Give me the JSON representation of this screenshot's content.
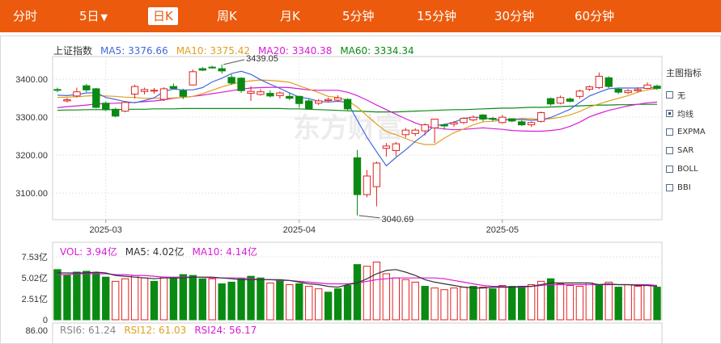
{
  "tabs": [
    {
      "label": "分时"
    },
    {
      "label": "5日"
    },
    {
      "label": "日K",
      "active": true
    },
    {
      "label": "周K"
    },
    {
      "label": "月K"
    },
    {
      "label": "5分钟"
    },
    {
      "label": "15分钟"
    },
    {
      "label": "30分钟"
    },
    {
      "label": "60分钟"
    }
  ],
  "five_day_caret": "▼",
  "legends": {
    "main": {
      "index": "上证指数",
      "ma5": "MA5: 3376.66",
      "ma10": "MA10: 3375.42",
      "ma20": "MA20: 3340.38",
      "ma60": "MA60: 3334.34"
    },
    "vol": {
      "vol": "VOL: 3.94亿",
      "ma5": "MA5: 4.02亿",
      "ma10": "MA10: 4.14亿"
    },
    "rsi": {
      "rsi6": "RSI6: 61.24",
      "rsi12": "RSI12: 61.03",
      "rsi24": "RSI24: 56.17"
    }
  },
  "side_panel": {
    "title": "主图指标",
    "items": [
      {
        "label": "无",
        "checked": false
      },
      {
        "label": "均线",
        "checked": true
      },
      {
        "label": "EXPMA",
        "checked": false
      },
      {
        "label": "SAR",
        "checked": false
      },
      {
        "label": "BOLL",
        "checked": false
      },
      {
        "label": "BBI",
        "checked": false
      }
    ]
  },
  "colors": {
    "brand": "#ec5a0d",
    "up": "#e02222",
    "down": "#0a8a12",
    "ma5": "#4169e1",
    "ma10": "#e0a020",
    "ma20": "#d81bd8",
    "ma60": "#0a8a12",
    "rsi6": "#888888",
    "rsi12": "#e0a020",
    "rsi24": "#d81bd8",
    "vol": "#d81bd8"
  },
  "chart_data": [
    {
      "type": "candlestick",
      "title": "",
      "x_ticks": [
        "2025-03",
        "2025-04",
        "2025-05"
      ],
      "y_ticks": [
        "3400.00",
        "3300.00",
        "3200.00",
        "3100.00"
      ],
      "ylim": [
        3030,
        3460
      ],
      "high_label": "3439.05",
      "low_label": "3040.69",
      "candles": [
        [
          3373,
          3371,
          3378,
          3366
        ],
        [
          3343,
          3346,
          3351,
          3339
        ],
        [
          3356,
          3367,
          3378,
          3352
        ],
        [
          3383,
          3372,
          3388,
          3366
        ],
        [
          3375,
          3326,
          3377,
          3323
        ],
        [
          3337,
          3320,
          3342,
          3316
        ],
        [
          3321,
          3303,
          3325,
          3300
        ],
        [
          3316,
          3339,
          3342,
          3313
        ],
        [
          3361,
          3381,
          3386,
          3349
        ],
        [
          3368,
          3373,
          3378,
          3360
        ],
        [
          3370,
          3371,
          3377,
          3362
        ],
        [
          3347,
          3375,
          3379,
          3343
        ],
        [
          3381,
          3376,
          3389,
          3374
        ],
        [
          3370,
          3355,
          3375,
          3348
        ],
        [
          3385,
          3420,
          3426,
          3384
        ],
        [
          3428,
          3424,
          3432,
          3422
        ],
        [
          3432,
          3430,
          3436,
          3428
        ],
        [
          3428,
          3422,
          3439,
          3415
        ],
        [
          3405,
          3390,
          3413,
          3385
        ],
        [
          3403,
          3370,
          3405,
          3364
        ],
        [
          3363,
          3368,
          3382,
          3343
        ],
        [
          3360,
          3367,
          3374,
          3357
        ],
        [
          3363,
          3356,
          3371,
          3352
        ],
        [
          3357,
          3364,
          3368,
          3349
        ],
        [
          3355,
          3350,
          3365,
          3345
        ],
        [
          3355,
          3336,
          3357,
          3325
        ],
        [
          3343,
          3322,
          3348,
          3320
        ],
        [
          3337,
          3343,
          3348,
          3332
        ],
        [
          3344,
          3347,
          3352,
          3340
        ],
        [
          3345,
          3351,
          3358,
          3340
        ],
        [
          3347,
          3322,
          3350,
          3318
        ],
        [
          3193,
          3096,
          3214,
          3041
        ],
        [
          3096,
          3145,
          3161,
          3089
        ],
        [
          3117,
          3179,
          3183,
          3065
        ],
        [
          3218,
          3224,
          3232,
          3196
        ],
        [
          3212,
          3230,
          3235,
          3197
        ],
        [
          3254,
          3266,
          3272,
          3246
        ],
        [
          3257,
          3266,
          3271,
          3250
        ],
        [
          3264,
          3280,
          3284,
          3252
        ],
        [
          3272,
          3295,
          3296,
          3232
        ],
        [
          3280,
          3277,
          3283,
          3268
        ],
        [
          3282,
          3286,
          3290,
          3275
        ],
        [
          3286,
          3297,
          3300,
          3282
        ],
        [
          3293,
          3300,
          3305,
          3289
        ],
        [
          3306,
          3295,
          3308,
          3289
        ],
        [
          3297,
          3295,
          3301,
          3290
        ],
        [
          3286,
          3300,
          3306,
          3283
        ],
        [
          3296,
          3290,
          3297,
          3287
        ],
        [
          3288,
          3280,
          3292,
          3277
        ],
        [
          3280,
          3286,
          3289,
          3274
        ],
        [
          3289,
          3312,
          3315,
          3286
        ],
        [
          3349,
          3335,
          3352,
          3330
        ],
        [
          3337,
          3352,
          3357,
          3334
        ],
        [
          3348,
          3342,
          3352,
          3339
        ],
        [
          3355,
          3369,
          3373,
          3349
        ],
        [
          3374,
          3380,
          3384,
          3369
        ],
        [
          3378,
          3408,
          3418,
          3374
        ],
        [
          3404,
          3381,
          3408,
          3377
        ],
        [
          3374,
          3366,
          3378,
          3361
        ],
        [
          3365,
          3370,
          3374,
          3361
        ],
        [
          3370,
          3373,
          3379,
          3365
        ],
        [
          3376,
          3385,
          3392,
          3374
        ],
        [
          3382,
          3376,
          3386,
          3372
        ]
      ],
      "ma5": [
        3358,
        3357,
        3360,
        3364,
        3365,
        3352,
        3347,
        3341,
        3338,
        3344,
        3351,
        3368,
        3374,
        3372,
        3372,
        3378,
        3393,
        3403,
        3415,
        3421,
        3413,
        3399,
        3387,
        3376,
        3364,
        3353,
        3349,
        3342,
        3340,
        3342,
        3339,
        3292,
        3247,
        3209,
        3172,
        3194,
        3214,
        3236,
        3256,
        3278,
        3281,
        3287,
        3297,
        3300,
        3299,
        3294,
        3294,
        3294,
        3294,
        3292,
        3293,
        3299,
        3310,
        3321,
        3339,
        3356,
        3366,
        3375,
        3377,
        3377,
        3377,
        3378,
        3377
      ],
      "ma10": [
        3352,
        3353,
        3354,
        3356,
        3357,
        3356,
        3355,
        3353,
        3352,
        3350,
        3350,
        3350,
        3351,
        3352,
        3355,
        3362,
        3371,
        3380,
        3387,
        3393,
        3396,
        3398,
        3397,
        3395,
        3392,
        3383,
        3374,
        3365,
        3355,
        3352,
        3344,
        3327,
        3304,
        3282,
        3262,
        3254,
        3244,
        3234,
        3228,
        3228,
        3245,
        3259,
        3269,
        3280,
        3288,
        3289,
        3292,
        3294,
        3297,
        3296,
        3294,
        3296,
        3300,
        3306,
        3315,
        3327,
        3335,
        3343,
        3350,
        3357,
        3366,
        3372,
        3375
      ],
      "ma20": [
        3325,
        3328,
        3330,
        3332,
        3335,
        3336,
        3337,
        3338,
        3339,
        3341,
        3343,
        3346,
        3350,
        3352,
        3355,
        3358,
        3362,
        3366,
        3370,
        3374,
        3377,
        3378,
        3379,
        3379,
        3378,
        3375,
        3372,
        3371,
        3371,
        3371,
        3366,
        3357,
        3345,
        3332,
        3320,
        3308,
        3296,
        3285,
        3276,
        3272,
        3269,
        3267,
        3268,
        3270,
        3272,
        3270,
        3268,
        3265,
        3264,
        3263,
        3263,
        3265,
        3268,
        3276,
        3287,
        3301,
        3310,
        3318,
        3324,
        3330,
        3334,
        3338,
        3340
      ],
      "ma60": [
        3318,
        3319,
        3319,
        3320,
        3320,
        3320,
        3320,
        3321,
        3321,
        3321,
        3322,
        3322,
        3322,
        3323,
        3323,
        3323,
        3323,
        3323,
        3323,
        3323,
        3323,
        3323,
        3323,
        3323,
        3322,
        3322,
        3321,
        3320,
        3319,
        3318,
        3317,
        3316,
        3315,
        3314,
        3314,
        3314,
        3315,
        3316,
        3317,
        3318,
        3319,
        3320,
        3320,
        3321,
        3322,
        3323,
        3324,
        3324,
        3325,
        3326,
        3326,
        3327,
        3328,
        3329,
        3330,
        3331,
        3332,
        3332,
        3333,
        3333,
        3334,
        3334,
        3334
      ]
    },
    {
      "type": "bar",
      "title": "",
      "y_ticks": [
        "7.53亿",
        "5.02亿",
        "2.51亿",
        "0"
      ],
      "ylim": [
        0,
        7.53
      ],
      "up_down": [
        0,
        0,
        0,
        0,
        0,
        0,
        1,
        1,
        1,
        1,
        0,
        1,
        0,
        0,
        0,
        0,
        1,
        0,
        0,
        0,
        0,
        0,
        1,
        0,
        1,
        0,
        1,
        1,
        0,
        0,
        0,
        0,
        1,
        1,
        1,
        1,
        1,
        1,
        0,
        1,
        1,
        1,
        1,
        0,
        1,
        0,
        1,
        0,
        0,
        1,
        1,
        0,
        1,
        1,
        1,
        1,
        0,
        1,
        0,
        1,
        1,
        1,
        0
      ],
      "vol": [
        6.0,
        5.3,
        5.7,
        5.8,
        5.6,
        5.1,
        4.6,
        4.9,
        5.3,
        5.0,
        4.6,
        5.1,
        5.0,
        5.4,
        5.3,
        4.9,
        4.9,
        4.3,
        4.5,
        4.9,
        5.2,
        5.0,
        4.4,
        4.7,
        4.2,
        4.3,
        4.0,
        3.7,
        3.3,
        3.7,
        4.1,
        6.6,
        6.4,
        6.9,
        5.5,
        5.0,
        4.8,
        4.5,
        4.0,
        3.8,
        3.6,
        3.8,
        3.9,
        4.0,
        3.9,
        3.7,
        4.1,
        4.0,
        4.0,
        4.2,
        4.6,
        4.9,
        4.3,
        4.1,
        4.0,
        4.4,
        4.1,
        4.5,
        3.9,
        4.2,
        4.0,
        4.1,
        3.9
      ],
      "ma5": [
        5.6,
        5.6,
        5.6,
        5.6,
        5.7,
        5.6,
        5.3,
        5.2,
        5.1,
        5.0,
        4.9,
        5.0,
        5.0,
        5.0,
        5.1,
        5.1,
        5.1,
        5.0,
        4.9,
        4.8,
        4.8,
        4.8,
        4.8,
        4.8,
        4.7,
        4.5,
        4.3,
        4.2,
        4.0,
        3.9,
        4.2,
        4.4,
        4.9,
        5.5,
        5.9,
        6.0,
        5.7,
        5.3,
        4.8,
        4.5,
        4.3,
        4.1,
        3.9,
        3.8,
        3.8,
        3.9,
        3.9,
        3.9,
        4.0,
        4.0,
        4.2,
        4.4,
        4.4,
        4.4,
        4.4,
        4.4,
        4.2,
        4.3,
        4.2,
        4.2,
        4.1,
        4.1,
        4.0
      ],
      "ma10": [
        5.4,
        5.4,
        5.5,
        5.5,
        5.5,
        5.5,
        5.4,
        5.4,
        5.3,
        5.3,
        5.2,
        5.1,
        5.1,
        5.1,
        5.1,
        5.1,
        5.0,
        5.0,
        5.0,
        5.0,
        4.9,
        4.8,
        4.8,
        4.7,
        4.7,
        4.6,
        4.5,
        4.4,
        4.3,
        4.3,
        4.3,
        4.4,
        4.6,
        4.8,
        4.9,
        5.0,
        5.0,
        5.0,
        5.0,
        5.0,
        4.9,
        4.7,
        4.5,
        4.3,
        4.1,
        4.0,
        4.0,
        3.9,
        3.9,
        4.0,
        4.1,
        4.2,
        4.2,
        4.2,
        4.2,
        4.2,
        4.2,
        4.2,
        4.2,
        4.2,
        4.2,
        4.2,
        4.1
      ]
    },
    {
      "type": "line",
      "title": "",
      "y_ticks": [
        "86.00"
      ]
    }
  ]
}
